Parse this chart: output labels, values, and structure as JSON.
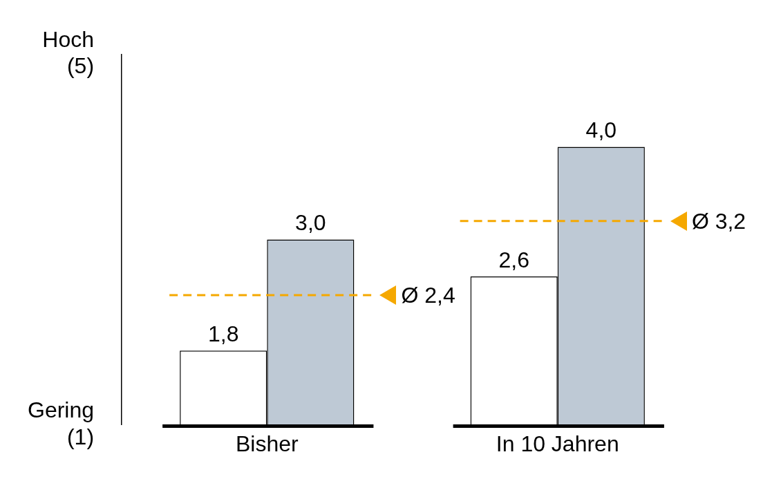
{
  "chart_data": {
    "type": "bar",
    "categories": [
      "Bisher",
      "In 10 Jahren"
    ],
    "series": [
      {
        "color": "#ffffff",
        "values": [
          1.8,
          2.6
        ],
        "value_labels": [
          "1,8",
          "2,6"
        ]
      },
      {
        "color": "#bec9d5",
        "values": [
          3.0,
          4.0
        ],
        "value_labels": [
          "3,0",
          "4,0"
        ]
      }
    ],
    "ylim": [
      1,
      5
    ],
    "yticks": [
      {
        "value": 1,
        "label": "Gering (1)"
      },
      {
        "value": 5,
        "label": "Hoch (5)"
      }
    ],
    "legend": false,
    "ref_lines": [
      {
        "axis": "y",
        "value": 2.4,
        "label": "Ø 2,4",
        "color": "#f5a800",
        "line_style": "dashed"
      },
      {
        "axis": "y",
        "value": 3.2,
        "label": "Ø 3,2",
        "color": "#f5a800",
        "line_style": "dashed"
      }
    ]
  }
}
